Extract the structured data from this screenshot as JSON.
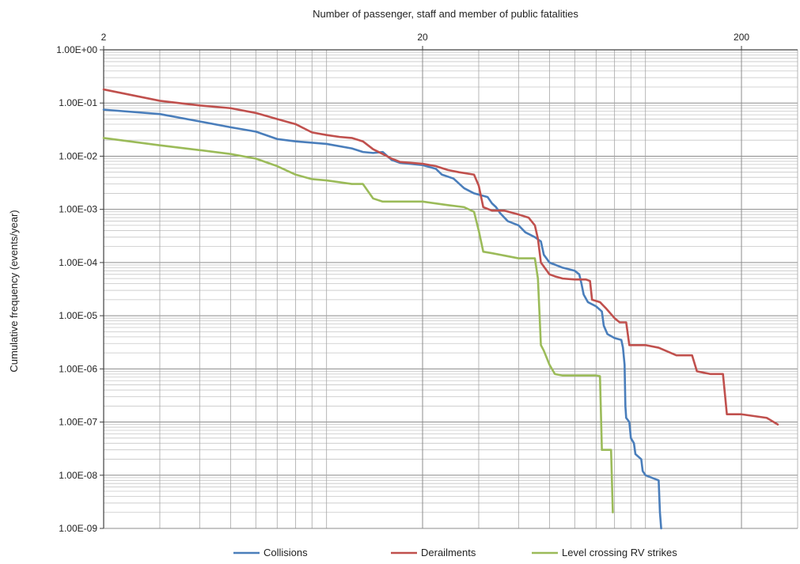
{
  "chart_data": {
    "type": "line",
    "title": "",
    "xlabel": "Number of passenger, staff and member of public fatalities",
    "ylabel": "Cumulative frequency (events/year)",
    "x_scale": "log",
    "y_scale": "log",
    "xlim": [
      2,
      300
    ],
    "ylim": [
      1e-09,
      1
    ],
    "x_tick_labels": [
      "2",
      "20",
      "200"
    ],
    "x_tick_values": [
      2,
      20,
      200
    ],
    "y_tick_labels": [
      "1.00E+00",
      "1.00E-01",
      "1.00E-02",
      "1.00E-03",
      "1.00E-04",
      "1.00E-05",
      "1.00E-06",
      "1.00E-07",
      "1.00E-08",
      "1.00E-09"
    ],
    "y_tick_values": [
      1,
      0.1,
      0.01,
      0.001,
      0.0001,
      1e-05,
      1e-06,
      1e-07,
      1e-08,
      1e-09
    ],
    "grid": true,
    "x_axis_position": "top",
    "legend_position": "bottom",
    "series": [
      {
        "name": "Collisions",
        "color": "#4a7ebb",
        "points": [
          [
            2,
            0.075
          ],
          [
            3,
            0.062
          ],
          [
            4,
            0.045
          ],
          [
            5,
            0.035
          ],
          [
            6,
            0.029
          ],
          [
            7,
            0.021
          ],
          [
            8,
            0.019
          ],
          [
            10,
            0.017
          ],
          [
            12,
            0.014
          ],
          [
            13,
            0.012
          ],
          [
            14,
            0.0115
          ],
          [
            15,
            0.012
          ],
          [
            16,
            0.0085
          ],
          [
            17,
            0.0075
          ],
          [
            20,
            0.0068
          ],
          [
            22,
            0.0058
          ],
          [
            23,
            0.0045
          ],
          [
            25,
            0.0038
          ],
          [
            27,
            0.0025
          ],
          [
            29,
            0.002
          ],
          [
            32,
            0.0017
          ],
          [
            33,
            0.0013
          ],
          [
            34,
            0.0011
          ],
          [
            35,
            0.00085
          ],
          [
            37,
            0.0006
          ],
          [
            40,
            0.0005
          ],
          [
            42,
            0.00037
          ],
          [
            45,
            0.0003
          ],
          [
            47,
            0.00025
          ],
          [
            48,
            0.00014
          ],
          [
            50,
            0.0001
          ],
          [
            55,
            8e-05
          ],
          [
            60,
            7e-05
          ],
          [
            62,
            6e-05
          ],
          [
            63,
            4e-05
          ],
          [
            64,
            2.5e-05
          ],
          [
            66,
            1.8e-05
          ],
          [
            70,
            1.5e-05
          ],
          [
            73,
            1.2e-05
          ],
          [
            74,
            6.5e-06
          ],
          [
            76,
            4.5e-06
          ],
          [
            80,
            3.8e-06
          ],
          [
            84,
            3.5e-06
          ],
          [
            85,
            2.5e-06
          ],
          [
            86,
            1.2e-06
          ],
          [
            86.5,
            2e-07
          ],
          [
            87,
            1.2e-07
          ],
          [
            89,
            1e-07
          ],
          [
            90,
            5e-08
          ],
          [
            92,
            4e-08
          ],
          [
            93,
            2.5e-08
          ],
          [
            97,
            2e-08
          ],
          [
            98,
            1.2e-08
          ],
          [
            100,
            1e-08
          ],
          [
            110,
            8e-09
          ],
          [
            111,
            2e-09
          ],
          [
            112,
            1e-09
          ]
        ]
      },
      {
        "name": "Derailments",
        "color": "#c0504d",
        "points": [
          [
            2,
            0.18
          ],
          [
            3,
            0.11
          ],
          [
            4,
            0.09
          ],
          [
            5,
            0.08
          ],
          [
            6,
            0.065
          ],
          [
            7,
            0.05
          ],
          [
            8,
            0.04
          ],
          [
            9,
            0.028
          ],
          [
            10,
            0.025
          ],
          [
            11,
            0.023
          ],
          [
            12,
            0.022
          ],
          [
            13,
            0.019
          ],
          [
            14,
            0.0135
          ],
          [
            15,
            0.011
          ],
          [
            16,
            0.009
          ],
          [
            17,
            0.0078
          ],
          [
            20,
            0.0072
          ],
          [
            22,
            0.0065
          ],
          [
            24,
            0.0055
          ],
          [
            26,
            0.005
          ],
          [
            29,
            0.0045
          ],
          [
            30,
            0.0028
          ],
          [
            31,
            0.0011
          ],
          [
            33,
            0.00095
          ],
          [
            36,
            0.00095
          ],
          [
            40,
            0.0008
          ],
          [
            43,
            0.0007
          ],
          [
            45,
            0.0005
          ],
          [
            46,
            0.00028
          ],
          [
            47,
            0.0001
          ],
          [
            50,
            6e-05
          ],
          [
            52,
            5.5e-05
          ],
          [
            55,
            5e-05
          ],
          [
            60,
            4.8e-05
          ],
          [
            65,
            4.8e-05
          ],
          [
            67,
            4.5e-05
          ],
          [
            68,
            2e-05
          ],
          [
            72,
            1.8e-05
          ],
          [
            75,
            1.4e-05
          ],
          [
            80,
            9e-06
          ],
          [
            83,
            7.5e-06
          ],
          [
            87,
            7.5e-06
          ],
          [
            89,
            2.8e-06
          ],
          [
            100,
            2.8e-06
          ],
          [
            110,
            2.5e-06
          ],
          [
            125,
            1.8e-06
          ],
          [
            140,
            1.8e-06
          ],
          [
            145,
            9e-07
          ],
          [
            160,
            8e-07
          ],
          [
            175,
            8e-07
          ],
          [
            180,
            1.4e-07
          ],
          [
            200,
            1.4e-07
          ],
          [
            240,
            1.2e-07
          ],
          [
            260,
            9e-08
          ]
        ]
      },
      {
        "name": "Level crossing RV strikes",
        "color": "#9bbb59",
        "points": [
          [
            2,
            0.022
          ],
          [
            3,
            0.016
          ],
          [
            4,
            0.013
          ],
          [
            5,
            0.011
          ],
          [
            6,
            0.009
          ],
          [
            7,
            0.0065
          ],
          [
            8,
            0.0045
          ],
          [
            9,
            0.0037
          ],
          [
            10,
            0.0035
          ],
          [
            12,
            0.003
          ],
          [
            13,
            0.003
          ],
          [
            14,
            0.0016
          ],
          [
            15,
            0.0014
          ],
          [
            20,
            0.0014
          ],
          [
            24,
            0.0012
          ],
          [
            27,
            0.0011
          ],
          [
            29,
            0.0009
          ],
          [
            30,
            0.0004
          ],
          [
            31,
            0.00016
          ],
          [
            33,
            0.00015
          ],
          [
            40,
            0.00012
          ],
          [
            45,
            0.00012
          ],
          [
            46,
            5e-05
          ],
          [
            47,
            2.8e-06
          ],
          [
            48,
            2.2e-06
          ],
          [
            50,
            1.2e-06
          ],
          [
            52,
            8e-07
          ],
          [
            55,
            7.5e-07
          ],
          [
            60,
            7.5e-07
          ],
          [
            70,
            7.5e-07
          ],
          [
            72,
            7.3e-07
          ],
          [
            73,
            3e-08
          ],
          [
            78,
            3e-08
          ],
          [
            79,
            2e-09
          ]
        ]
      }
    ]
  }
}
